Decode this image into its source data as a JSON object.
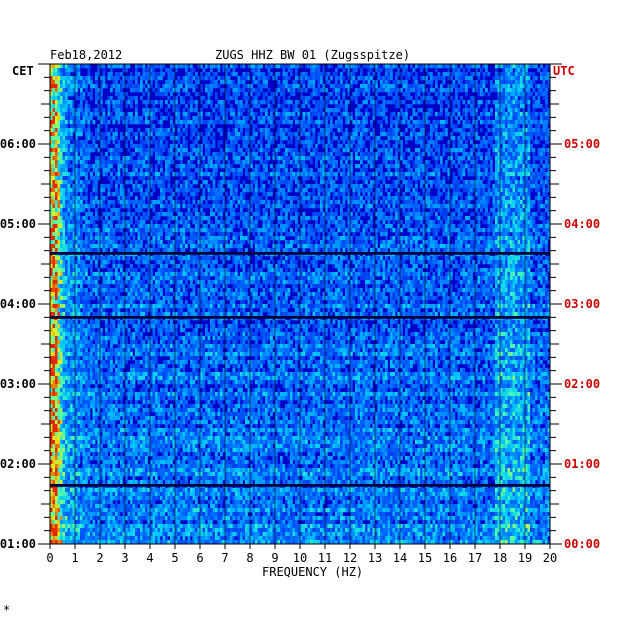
{
  "header": {
    "date": "Feb18,2012",
    "station": "ZUGS HHZ BW 01 (Zugsspitze)"
  },
  "labels": {
    "left_tz": "CET",
    "right_tz": "UTC",
    "footer_mark": "*"
  },
  "colors": {
    "background": "#0000c8",
    "right_axis_text": "#cc0000",
    "axis_text": "#000000"
  },
  "chart_data": {
    "type": "heatmap",
    "title": "ZUGS HHZ BW 01 (Zugsspitze)",
    "date": "Feb18,2012",
    "xlabel": "FREQUENCY (HZ)",
    "xlim": [
      0,
      20
    ],
    "x_ticks": [
      "0",
      "1",
      "2",
      "3",
      "4",
      "5",
      "6",
      "7",
      "8",
      "9",
      "10",
      "11",
      "12",
      "13",
      "14",
      "15",
      "16",
      "17",
      "18",
      "19",
      "20"
    ],
    "y_left_label": "CET",
    "y_left_ticks": [
      "01:00",
      "02:00",
      "03:00",
      "04:00",
      "05:00",
      "06:00"
    ],
    "y_right_label": "UTC",
    "y_right_ticks": [
      "00:00",
      "01:00",
      "02:00",
      "03:00",
      "04:00",
      "05:00"
    ],
    "notes": "Spectrogram intensity; strongest energy below 1 Hz, persistent lines near 18-19 Hz, gap bands near 04:40, 03:48 and 01:45 CET."
  }
}
